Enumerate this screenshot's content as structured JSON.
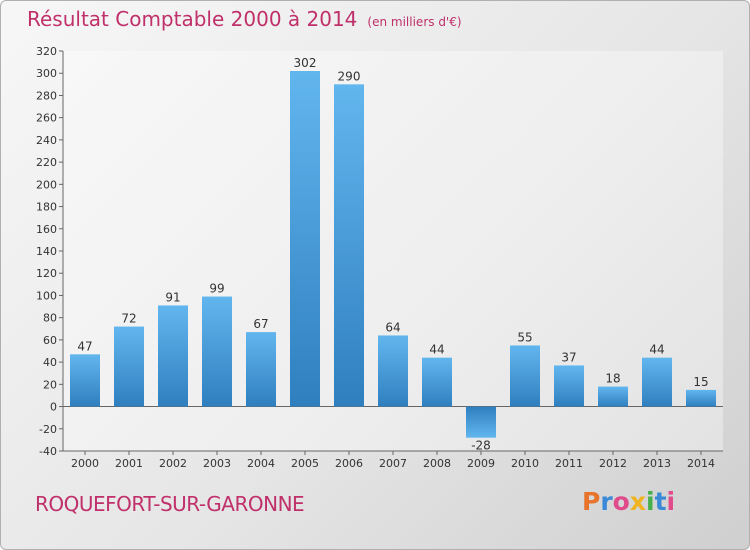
{
  "header": {
    "title": "Résultat Comptable 2000 à 2014",
    "unit": "(en milliers d'€)"
  },
  "footer": {
    "city": "ROQUEFORT-SUR-GARONNE",
    "brand": "Proxiti"
  },
  "colors": {
    "bar_light": "#5fb3ec",
    "bar_dark": "#2f80c0",
    "title": "#c0306a"
  },
  "chart_data": {
    "type": "bar",
    "title": "Résultat Comptable 2000 à 2014",
    "ylabel": "(en milliers d'€)",
    "xlabel": "",
    "categories": [
      "2000",
      "2001",
      "2002",
      "2003",
      "2004",
      "2005",
      "2006",
      "2007",
      "2008",
      "2009",
      "2010",
      "2011",
      "2012",
      "2013",
      "2014"
    ],
    "values": [
      47,
      72,
      91,
      99,
      67,
      302,
      290,
      64,
      44,
      -28,
      55,
      37,
      18,
      44,
      15
    ],
    "ylim": [
      -40,
      320
    ],
    "ytick_step": 20,
    "grid": false
  }
}
